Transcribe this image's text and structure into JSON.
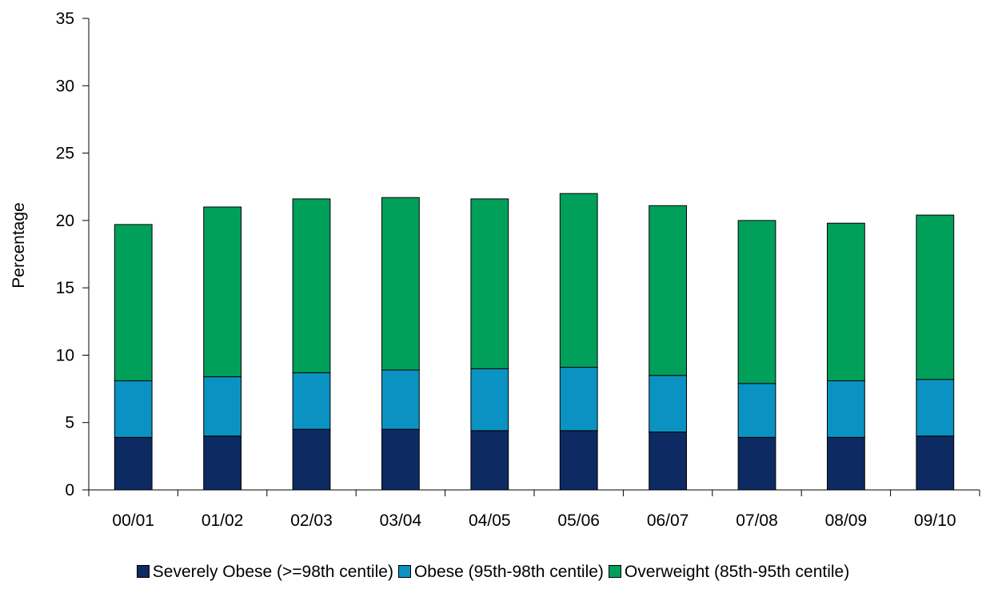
{
  "chart_data": {
    "type": "bar",
    "stacked": true,
    "title": "",
    "xlabel": "",
    "ylabel": "Percentage",
    "ylim": [
      0,
      35
    ],
    "yticks": [
      0,
      5,
      10,
      15,
      20,
      25,
      30,
      35
    ],
    "grid": false,
    "legend_position": "bottom",
    "categories": [
      "00/01",
      "01/02",
      "02/03",
      "03/04",
      "04/05",
      "05/06",
      "06/07",
      "07/08",
      "08/09",
      "09/10"
    ],
    "series": [
      {
        "name": "Severely Obese (>=98th centile)",
        "color": "#0d2a63",
        "values": [
          3.9,
          4.0,
          4.5,
          4.5,
          4.4,
          4.4,
          4.3,
          3.9,
          3.9,
          4.0
        ]
      },
      {
        "name": "Obese (95th-98th centile)",
        "color": "#0a93c2",
        "values": [
          4.2,
          4.4,
          4.2,
          4.4,
          4.6,
          4.7,
          4.2,
          4.0,
          4.2,
          4.2
        ]
      },
      {
        "name": "Overweight (85th-95th centile)",
        "color": "#00a05a",
        "values": [
          11.6,
          12.6,
          12.9,
          12.8,
          12.6,
          12.9,
          12.6,
          12.1,
          11.7,
          12.2
        ]
      }
    ]
  }
}
